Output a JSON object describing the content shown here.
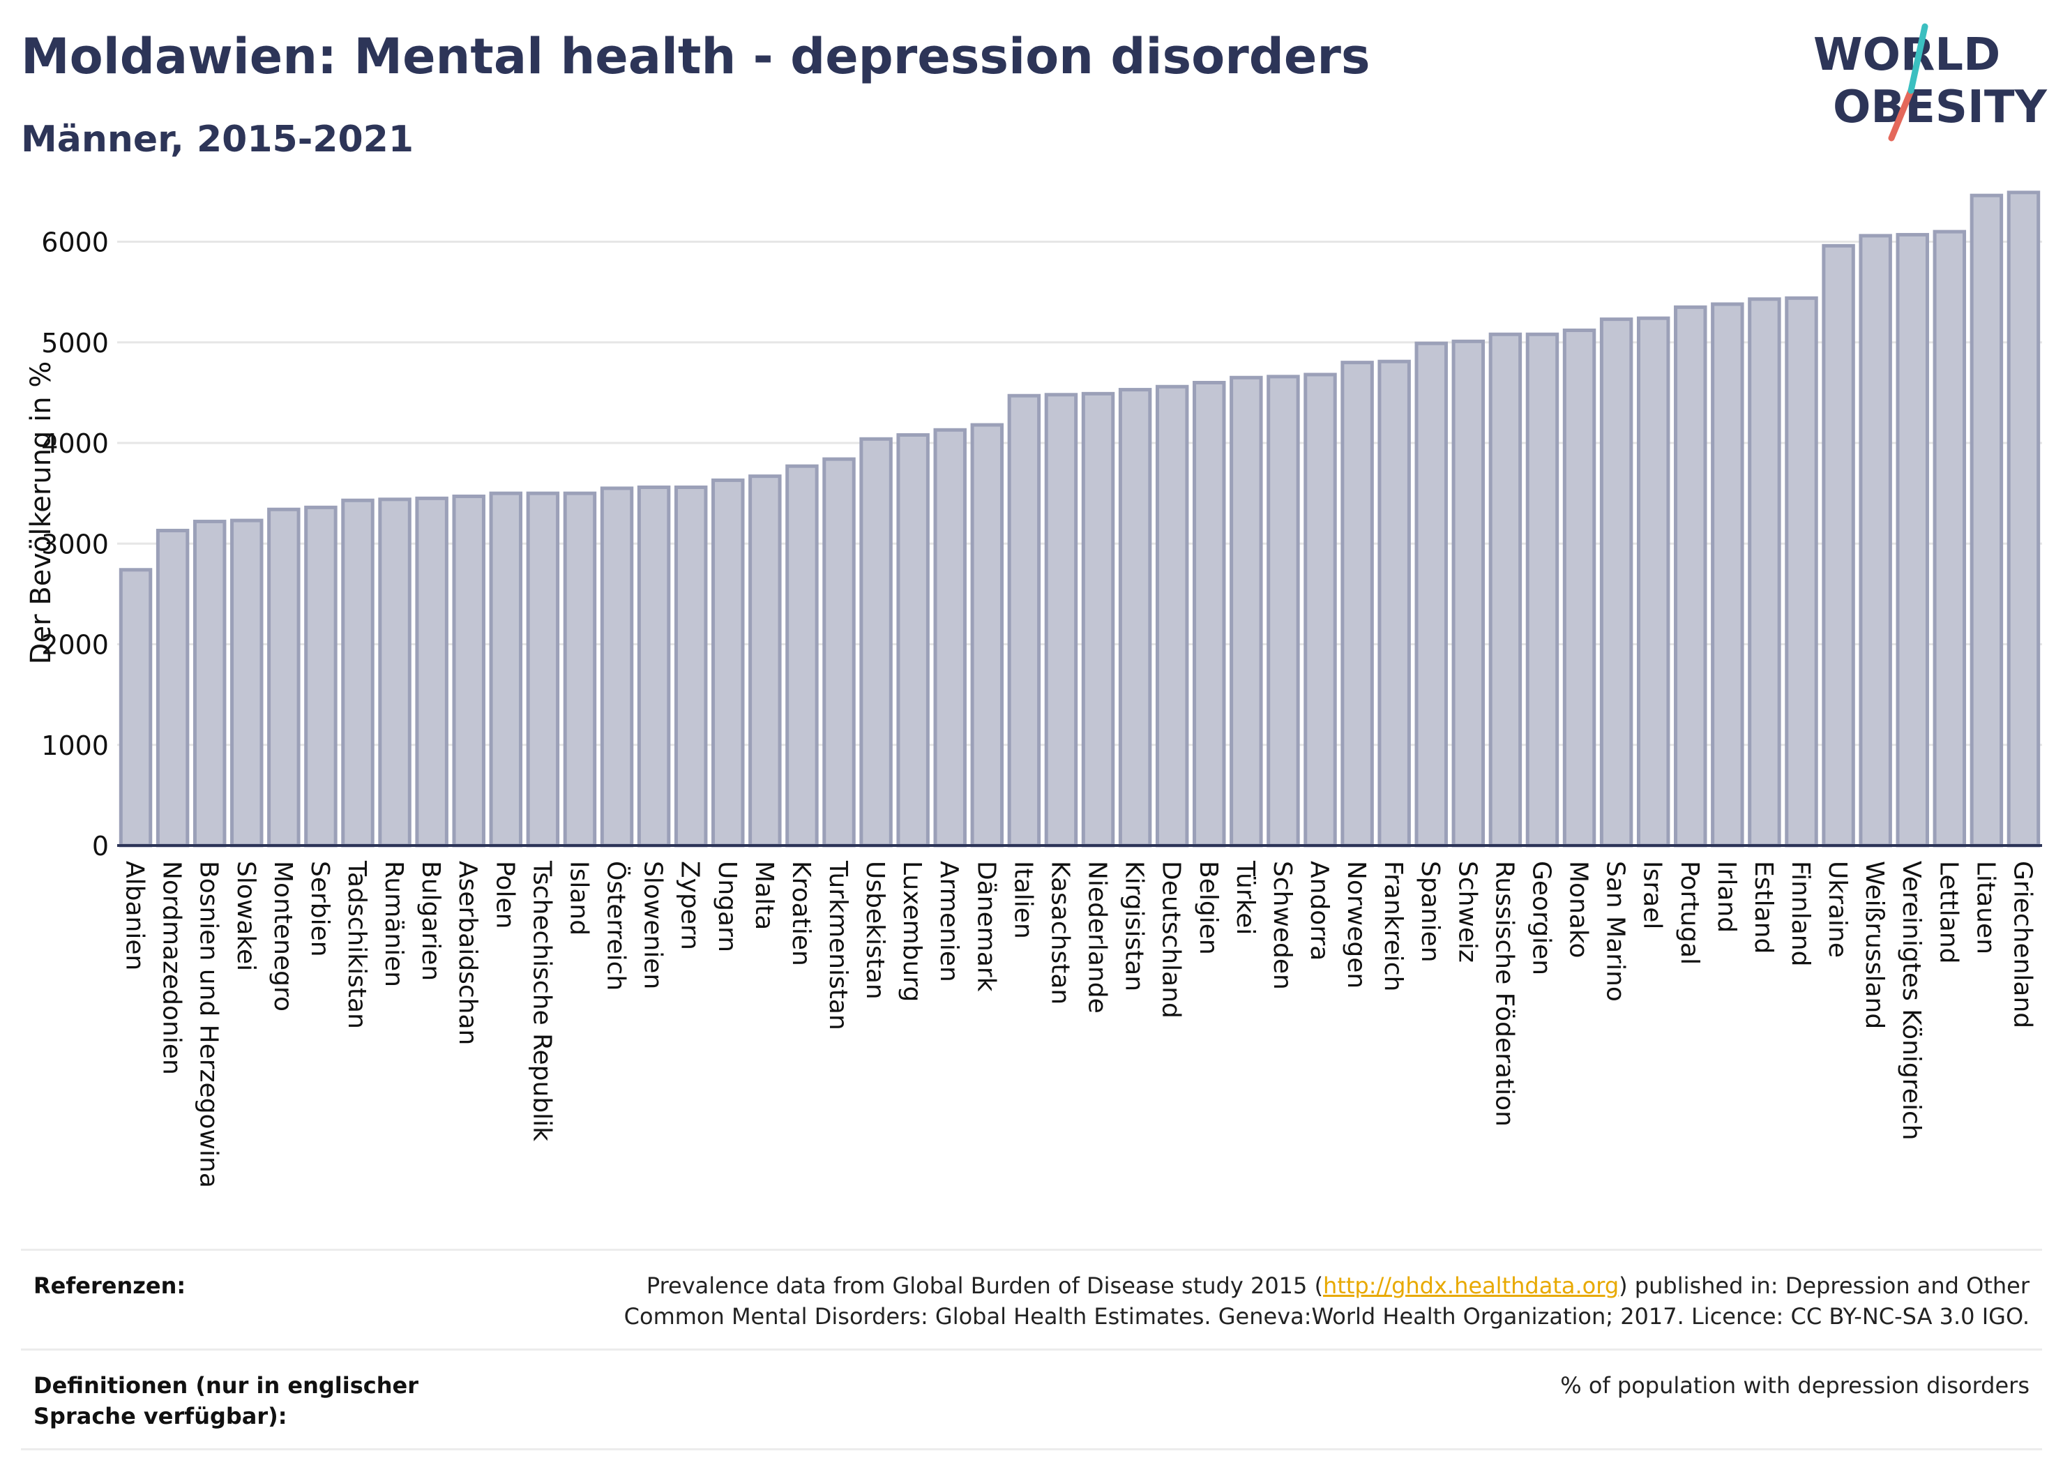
{
  "header": {
    "title": "Moldawien: Mental health - depression disorders",
    "subtitle": "Männer, 2015-2021"
  },
  "logo": {
    "line1": "WORLD",
    "line2": "OBESITY",
    "colors": {
      "text": "#2d3558",
      "slash_teal": "#3bbfc0",
      "slash_coral": "#e4685b"
    }
  },
  "chart_data": {
    "type": "bar",
    "ylabel": "Der Bevölkerung in %",
    "ylim": [
      0,
      6600
    ],
    "yticks": [
      0,
      1000,
      2000,
      3000,
      4000,
      5000,
      6000
    ],
    "grid": true,
    "bar_color": "#c2c5d3",
    "bar_stroke": "#9ba0b8",
    "axis_color": "#2d3558",
    "categories": [
      "Albanien",
      "Nordmazedonien",
      "Bosnien und Herzegowina",
      "Slowakei",
      "Montenegro",
      "Serbien",
      "Tadschikistan",
      "Rumänien",
      "Bulgarien",
      "Aserbaidschan",
      "Polen",
      "Tschechische Republik",
      "Island",
      "Österreich",
      "Slowenien",
      "Zypern",
      "Ungarn",
      "Malta",
      "Kroatien",
      "Turkmenistan",
      "Usbekistan",
      "Luxemburg",
      "Armenien",
      "Dänemark",
      "Italien",
      "Kasachstan",
      "Niederlande",
      "Kirgisistan",
      "Deutschland",
      "Belgien",
      "Türkei",
      "Schweden",
      "Andorra",
      "Norwegen",
      "Frankreich",
      "Spanien",
      "Schweiz",
      "Russische Föderation",
      "Georgien",
      "Monako",
      "San Marino",
      "Israel",
      "Portugal",
      "Irland",
      "Estland",
      "Finnland",
      "Ukraine",
      "Weißrussland",
      "Vereinigtes Königreich",
      "Lettland",
      "Litauen",
      "Griechenland"
    ],
    "values": [
      2740,
      3130,
      3220,
      3230,
      3340,
      3360,
      3430,
      3440,
      3450,
      3470,
      3500,
      3500,
      3500,
      3550,
      3560,
      3560,
      3630,
      3670,
      3770,
      3840,
      4040,
      4080,
      4130,
      4180,
      4470,
      4480,
      4490,
      4530,
      4560,
      4600,
      4650,
      4660,
      4680,
      4800,
      4810,
      4990,
      5010,
      5080,
      5080,
      5120,
      5230,
      5240,
      5350,
      5380,
      5430,
      5440,
      5960,
      6060,
      6070,
      6100,
      6460,
      6490
    ]
  },
  "references": {
    "label": "Referenzen:",
    "text_before": "Prevalence data from Global Burden of Disease study 2015 (",
    "link": "http://ghdx.healthdata.org",
    "text_after": ") published in: Depression and Other Common Mental Disorders: Global Health Estimates. Geneva:World Health Organization; 2017. Licence: CC BY-NC-SA 3.0 IGO."
  },
  "definitions": {
    "label": "Definitionen (nur in englischer Sprache verfügbar):",
    "text": "% of population with depression disorders"
  }
}
